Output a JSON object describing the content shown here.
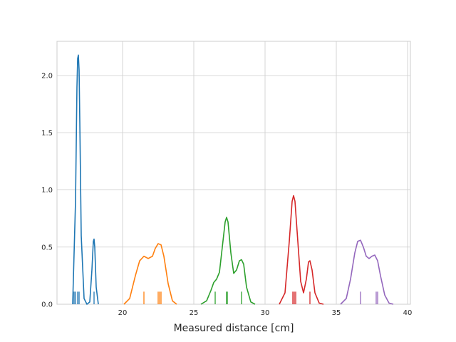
{
  "chart_data": {
    "type": "line",
    "title": "",
    "xlabel": "Measured distance [cm]",
    "ylabel": "",
    "xlim": [
      15.4,
      40.2
    ],
    "ylim": [
      0,
      2.3
    ],
    "xticks": [
      20,
      25,
      30,
      35,
      40
    ],
    "yticks": [
      0.0,
      0.5,
      1.0,
      1.5,
      2.0
    ],
    "xtick_labels": [
      "20",
      "25",
      "30",
      "35",
      "40"
    ],
    "ytick_labels": [
      "0.0",
      "0.5",
      "1.0",
      "1.5",
      "2.0"
    ],
    "grid": true,
    "series": [
      {
        "color": "#1f77b4",
        "x": [
          16.5,
          16.7,
          16.8,
          16.85,
          16.9,
          16.95,
          17.0,
          17.1,
          17.3,
          17.5,
          17.7,
          17.85,
          17.95,
          18.0,
          18.05,
          18.15,
          18.3
        ],
        "y": [
          0.0,
          0.9,
          1.9,
          2.15,
          2.18,
          2.05,
          1.6,
          0.6,
          0.05,
          0.0,
          0.02,
          0.3,
          0.55,
          0.57,
          0.5,
          0.15,
          0.0
        ],
        "rug": [
          16.6,
          16.7,
          16.85,
          16.95,
          18.0
        ]
      },
      {
        "color": "#ff7f0e",
        "x": [
          20.1,
          20.5,
          20.9,
          21.2,
          21.5,
          21.8,
          22.1,
          22.3,
          22.5,
          22.7,
          22.9,
          23.2,
          23.5,
          23.8
        ],
        "y": [
          0.0,
          0.05,
          0.25,
          0.38,
          0.42,
          0.4,
          0.42,
          0.49,
          0.53,
          0.52,
          0.42,
          0.18,
          0.03,
          0.0
        ],
        "rug": [
          21.5,
          22.5,
          22.6,
          22.7
        ]
      },
      {
        "color": "#2ca02c",
        "x": [
          25.5,
          25.9,
          26.2,
          26.4,
          26.6,
          26.8,
          27.0,
          27.2,
          27.3,
          27.4,
          27.6,
          27.8,
          28.0,
          28.2,
          28.35,
          28.5,
          28.7,
          29.0,
          29.3
        ],
        "y": [
          0.0,
          0.03,
          0.12,
          0.19,
          0.22,
          0.28,
          0.5,
          0.72,
          0.76,
          0.72,
          0.45,
          0.27,
          0.3,
          0.38,
          0.39,
          0.35,
          0.15,
          0.02,
          0.0
        ],
        "rug": [
          26.5,
          27.3,
          27.35,
          28.35
        ]
      },
      {
        "color": "#d62728",
        "x": [
          31.0,
          31.4,
          31.7,
          31.9,
          32.0,
          32.1,
          32.3,
          32.5,
          32.7,
          32.9,
          33.05,
          33.15,
          33.3,
          33.5,
          33.8,
          34.1
        ],
        "y": [
          0.0,
          0.1,
          0.55,
          0.9,
          0.95,
          0.9,
          0.55,
          0.2,
          0.1,
          0.22,
          0.37,
          0.38,
          0.3,
          0.1,
          0.01,
          0.0
        ],
        "rug": [
          31.95,
          32.05,
          32.15,
          33.15
        ]
      },
      {
        "color": "#9467bd",
        "x": [
          35.3,
          35.7,
          36.0,
          36.3,
          36.5,
          36.7,
          36.9,
          37.1,
          37.3,
          37.5,
          37.7,
          37.9,
          38.1,
          38.4,
          38.7,
          39.0
        ],
        "y": [
          0.0,
          0.05,
          0.22,
          0.45,
          0.55,
          0.56,
          0.5,
          0.42,
          0.4,
          0.42,
          0.43,
          0.38,
          0.25,
          0.08,
          0.01,
          0.0
        ],
        "rug": [
          36.7,
          37.8,
          37.9
        ]
      }
    ]
  }
}
